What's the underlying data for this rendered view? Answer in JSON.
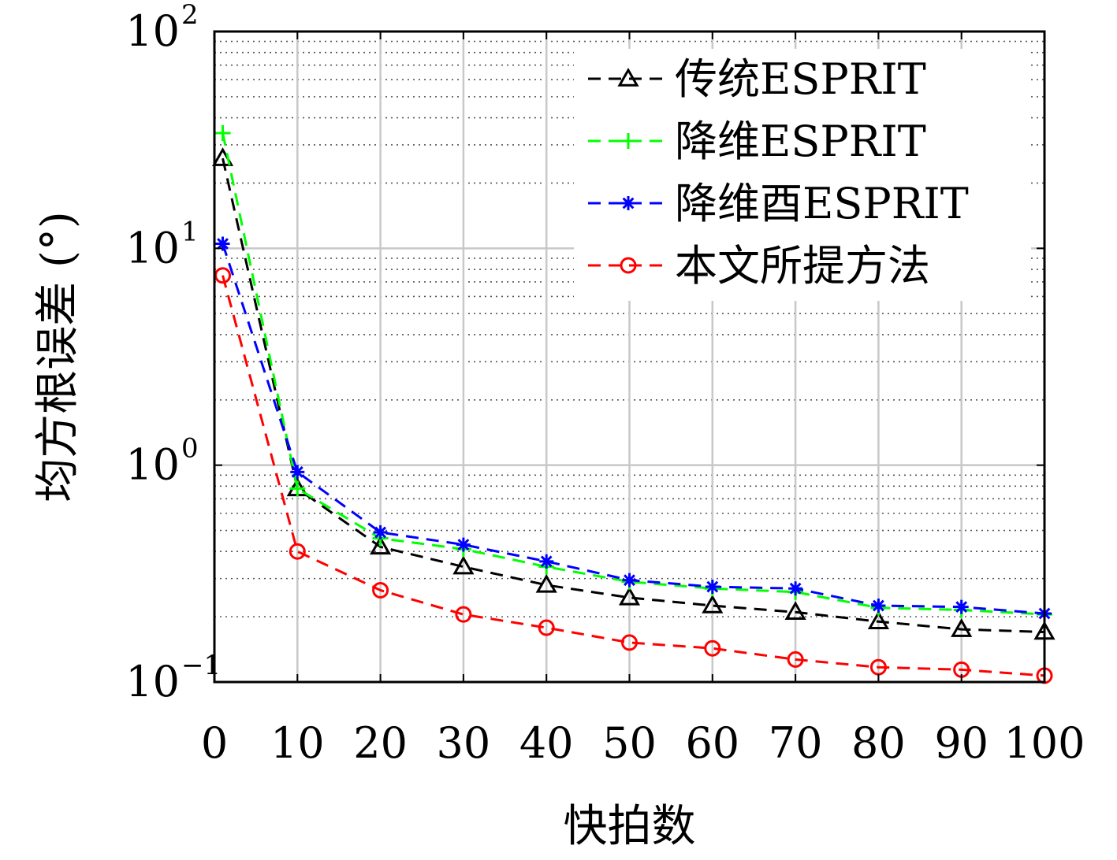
{
  "chart_data": {
    "type": "line",
    "xlabel": "快拍数",
    "ylabel": "均方根误差 (°)",
    "yscale": "log",
    "xlim": [
      0,
      100
    ],
    "ylim": [
      0.1,
      100
    ],
    "xticks": [
      "0",
      "10",
      "20",
      "30",
      "40",
      "50",
      "60",
      "70",
      "80",
      "90",
      "100"
    ],
    "yticks": [
      {
        "base": "10",
        "exp": "2",
        "value": 100
      },
      {
        "base": "10",
        "exp": "1",
        "value": 10
      },
      {
        "base": "10",
        "exp": "0",
        "value": 1
      },
      {
        "base": "10",
        "exp": "−1",
        "value": 0.1
      }
    ],
    "grid": true,
    "minor_grid": true,
    "legend_position": "top-right",
    "x": [
      1,
      10,
      20,
      30,
      40,
      50,
      60,
      70,
      80,
      90,
      100
    ],
    "series": [
      {
        "name": "传统ESPRIT",
        "color": "#000000",
        "marker": "triangle",
        "values": [
          26,
          0.78,
          0.42,
          0.34,
          0.28,
          0.245,
          0.225,
          0.21,
          0.19,
          0.175,
          0.17
        ]
      },
      {
        "name": "降维ESPRIT",
        "color": "#00ff00",
        "marker": "plus",
        "values": [
          34,
          0.78,
          0.46,
          0.41,
          0.34,
          0.29,
          0.27,
          0.26,
          0.22,
          0.215,
          0.205
        ]
      },
      {
        "name": "降维酉ESPRIT",
        "color": "#0000ff",
        "marker": "asterisk",
        "values": [
          10.5,
          0.93,
          0.49,
          0.43,
          0.36,
          0.295,
          0.275,
          0.27,
          0.225,
          0.222,
          0.207
        ]
      },
      {
        "name": "本文所提方法",
        "color": "#ff0000",
        "marker": "circle",
        "values": [
          7.5,
          0.4,
          0.265,
          0.205,
          0.178,
          0.152,
          0.143,
          0.127,
          0.117,
          0.114,
          0.107
        ]
      }
    ]
  }
}
